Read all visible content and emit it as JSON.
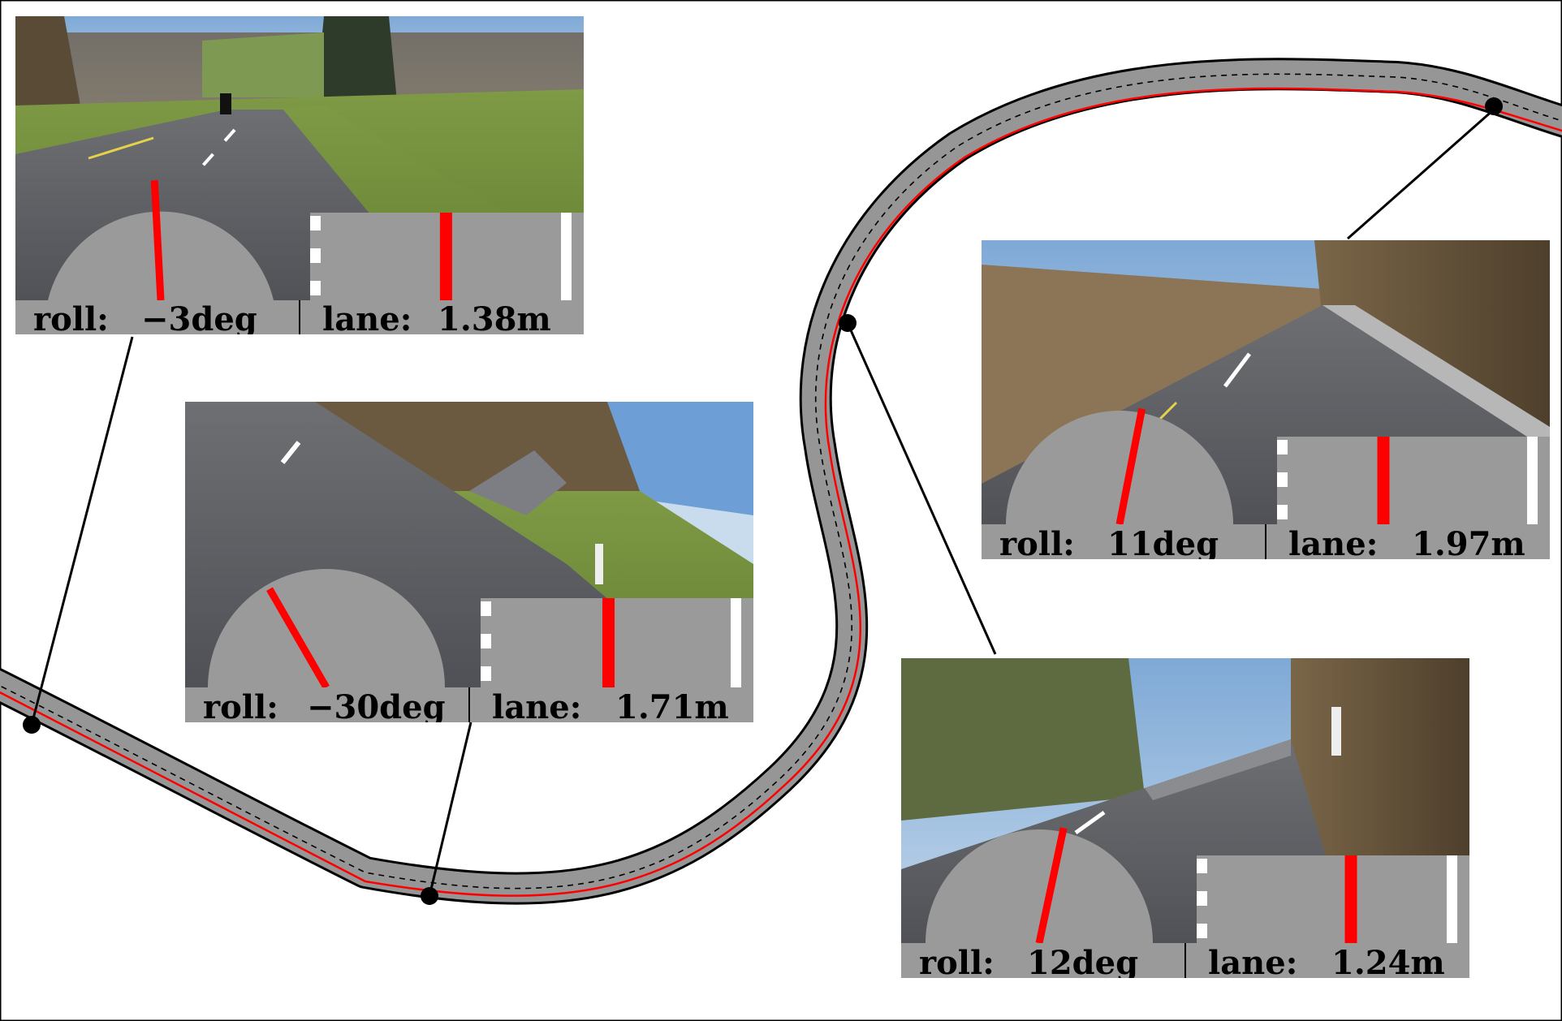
{
  "panels": [
    {
      "id": "p1",
      "roll_label": "roll:",
      "roll_value": "−3deg",
      "roll_deg": -3,
      "lane_label": "lane:",
      "lane_value": "1.38m",
      "lane_position": 0.52,
      "scene": "Rural road with grass fields and a motorcyclist ahead"
    },
    {
      "id": "p2",
      "roll_label": "roll:",
      "roll_value": "−30deg",
      "roll_deg": -30,
      "lane_label": "lane:",
      "lane_value": "1.71m",
      "lane_position": 0.49,
      "scene": "Tilted view of a curve with a meadow, forest and blue sky"
    },
    {
      "id": "p3",
      "roll_label": "roll:",
      "roll_value": "11deg",
      "roll_deg": 11,
      "lane_label": "lane:",
      "lane_value": "1.97m",
      "lane_position": 0.4,
      "scene": "Road through a bare forest with sunlight"
    },
    {
      "id": "p4",
      "roll_label": "roll:",
      "roll_value": "12deg",
      "roll_deg": 12,
      "lane_label": "lane:",
      "lane_value": "1.24m",
      "lane_position": 0.6,
      "scene": "Road curve beside a steep wooded slope"
    }
  ],
  "colors": {
    "road": "#969696",
    "trajectory": "#ff0000",
    "lane_marking": "#ffffff",
    "marker": "#000000",
    "label_bar": "#9a9a9a"
  }
}
